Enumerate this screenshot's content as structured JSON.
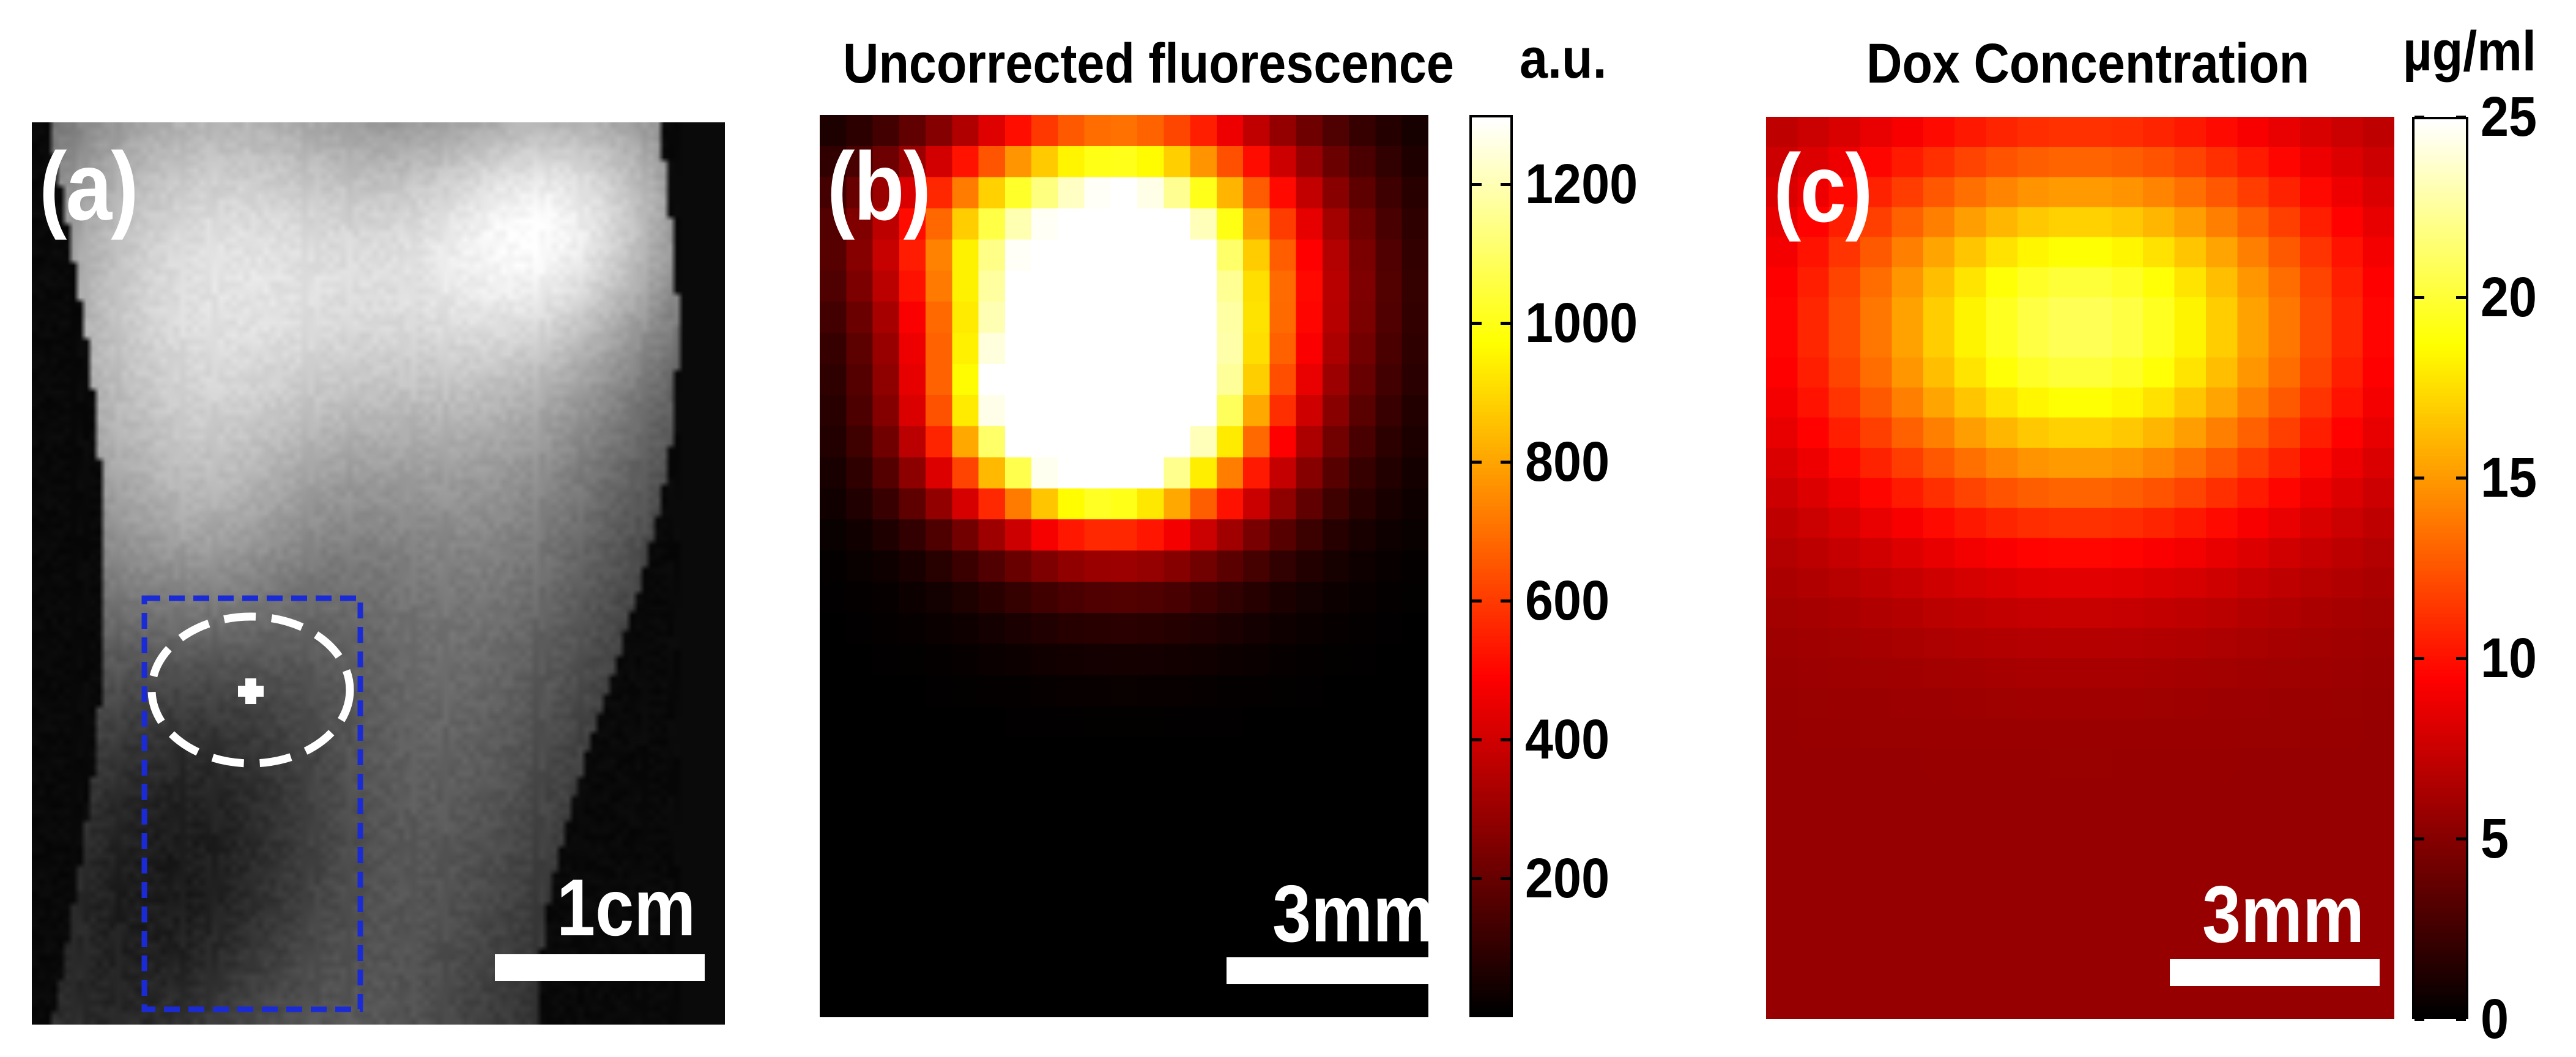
{
  "chart_data": [
    {
      "id": "a",
      "type": "image",
      "panel_label": "(a)",
      "description_free": true,
      "scale_bar": "1cm",
      "colormap": "gray"
    },
    {
      "id": "b",
      "type": "heatmap",
      "panel_label": "(b)",
      "title": "Uncorrected fluorescence",
      "colorbar_unit": "a.u.",
      "colorbar_ticks": [
        200,
        400,
        600,
        800,
        1000,
        1200
      ],
      "clim": [
        0,
        1300
      ],
      "colormap": "hot",
      "scale_bar": "3mm",
      "grid": [
        23,
        29
      ]
    },
    {
      "id": "c",
      "type": "heatmap",
      "panel_label": "(c)",
      "title": "Dox Concentration",
      "colorbar_unit": "µg/ml",
      "colorbar_ticks": [
        0,
        5,
        10,
        15,
        20,
        25
      ],
      "clim": [
        0,
        25
      ],
      "colormap": "hot",
      "scale_bar": "3mm",
      "grid": [
        20,
        30
      ]
    }
  ],
  "colors": {
    "roi_box": "#1a2bd6",
    "roi_ellipse": "#ffffff",
    "background": "#ffffff"
  }
}
